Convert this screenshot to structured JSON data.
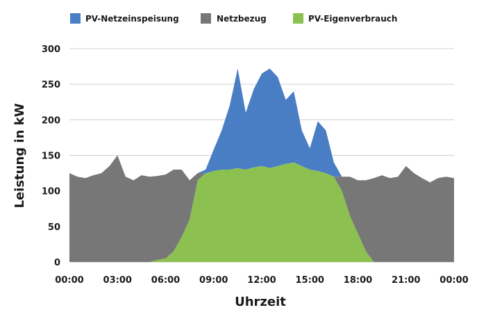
{
  "chart_data": {
    "type": "area",
    "title": "",
    "xlabel": "Uhrzeit",
    "ylabel": "Leistung in kW",
    "ylim": [
      0,
      300
    ],
    "yticks": [
      "0",
      "50",
      "100",
      "150",
      "200",
      "250",
      "300"
    ],
    "xticks": [
      "00:00",
      "03:00",
      "06:00",
      "09:00",
      "12:00",
      "15:00",
      "18:00",
      "21:00",
      "00:00"
    ],
    "grid": true,
    "legend_position": "top",
    "stacked": true,
    "colors": {
      "PV-Netzeinspeisung": "#4a7ec4",
      "Netzbezug": "#777777",
      "PV-Eigenverbrauch": "#8cc152"
    },
    "x_hours": [
      0,
      0.5,
      1,
      1.5,
      2,
      2.5,
      3,
      3.5,
      4,
      4.5,
      5,
      5.5,
      6,
      6.5,
      7,
      7.5,
      8,
      8.5,
      9,
      9.5,
      10,
      10.5,
      11,
      11.5,
      12,
      12.5,
      13,
      13.5,
      14,
      14.5,
      15,
      15.5,
      16,
      16.5,
      17,
      17.5,
      18,
      18.5,
      19,
      19.5,
      20,
      20.5,
      21,
      21.5,
      22,
      22.5,
      23,
      23.5,
      24
    ],
    "series": [
      {
        "name": "PV-Eigenverbrauch",
        "values": [
          0,
          0,
          0,
          0,
          0,
          0,
          0,
          0,
          0,
          0,
          0,
          3,
          5,
          15,
          35,
          60,
          115,
          125,
          128,
          130,
          130,
          132,
          130,
          133,
          135,
          132,
          135,
          138,
          140,
          135,
          130,
          128,
          125,
          120,
          100,
          65,
          40,
          15,
          0,
          0,
          0,
          0,
          0,
          0,
          0,
          0,
          0,
          0,
          0
        ]
      },
      {
        "name": "Netzbezug",
        "values": [
          125,
          120,
          118,
          122,
          125,
          135,
          150,
          120,
          115,
          122,
          120,
          118,
          118,
          115,
          95,
          55,
          10,
          0,
          0,
          0,
          0,
          0,
          0,
          0,
          0,
          0,
          0,
          0,
          0,
          0,
          0,
          0,
          0,
          0,
          20,
          55,
          75,
          100,
          118,
          122,
          118,
          120,
          135,
          125,
          118,
          112,
          118,
          120,
          118
        ]
      },
      {
        "name": "PV-Netzeinspeisung",
        "values": [
          0,
          0,
          0,
          0,
          0,
          0,
          0,
          0,
          0,
          0,
          0,
          0,
          0,
          0,
          0,
          0,
          0,
          5,
          30,
          55,
          90,
          140,
          80,
          110,
          130,
          140,
          125,
          90,
          100,
          50,
          30,
          70,
          60,
          20,
          0,
          0,
          0,
          0,
          0,
          0,
          0,
          0,
          0,
          0,
          0,
          0,
          0,
          0,
          0
        ]
      }
    ]
  }
}
